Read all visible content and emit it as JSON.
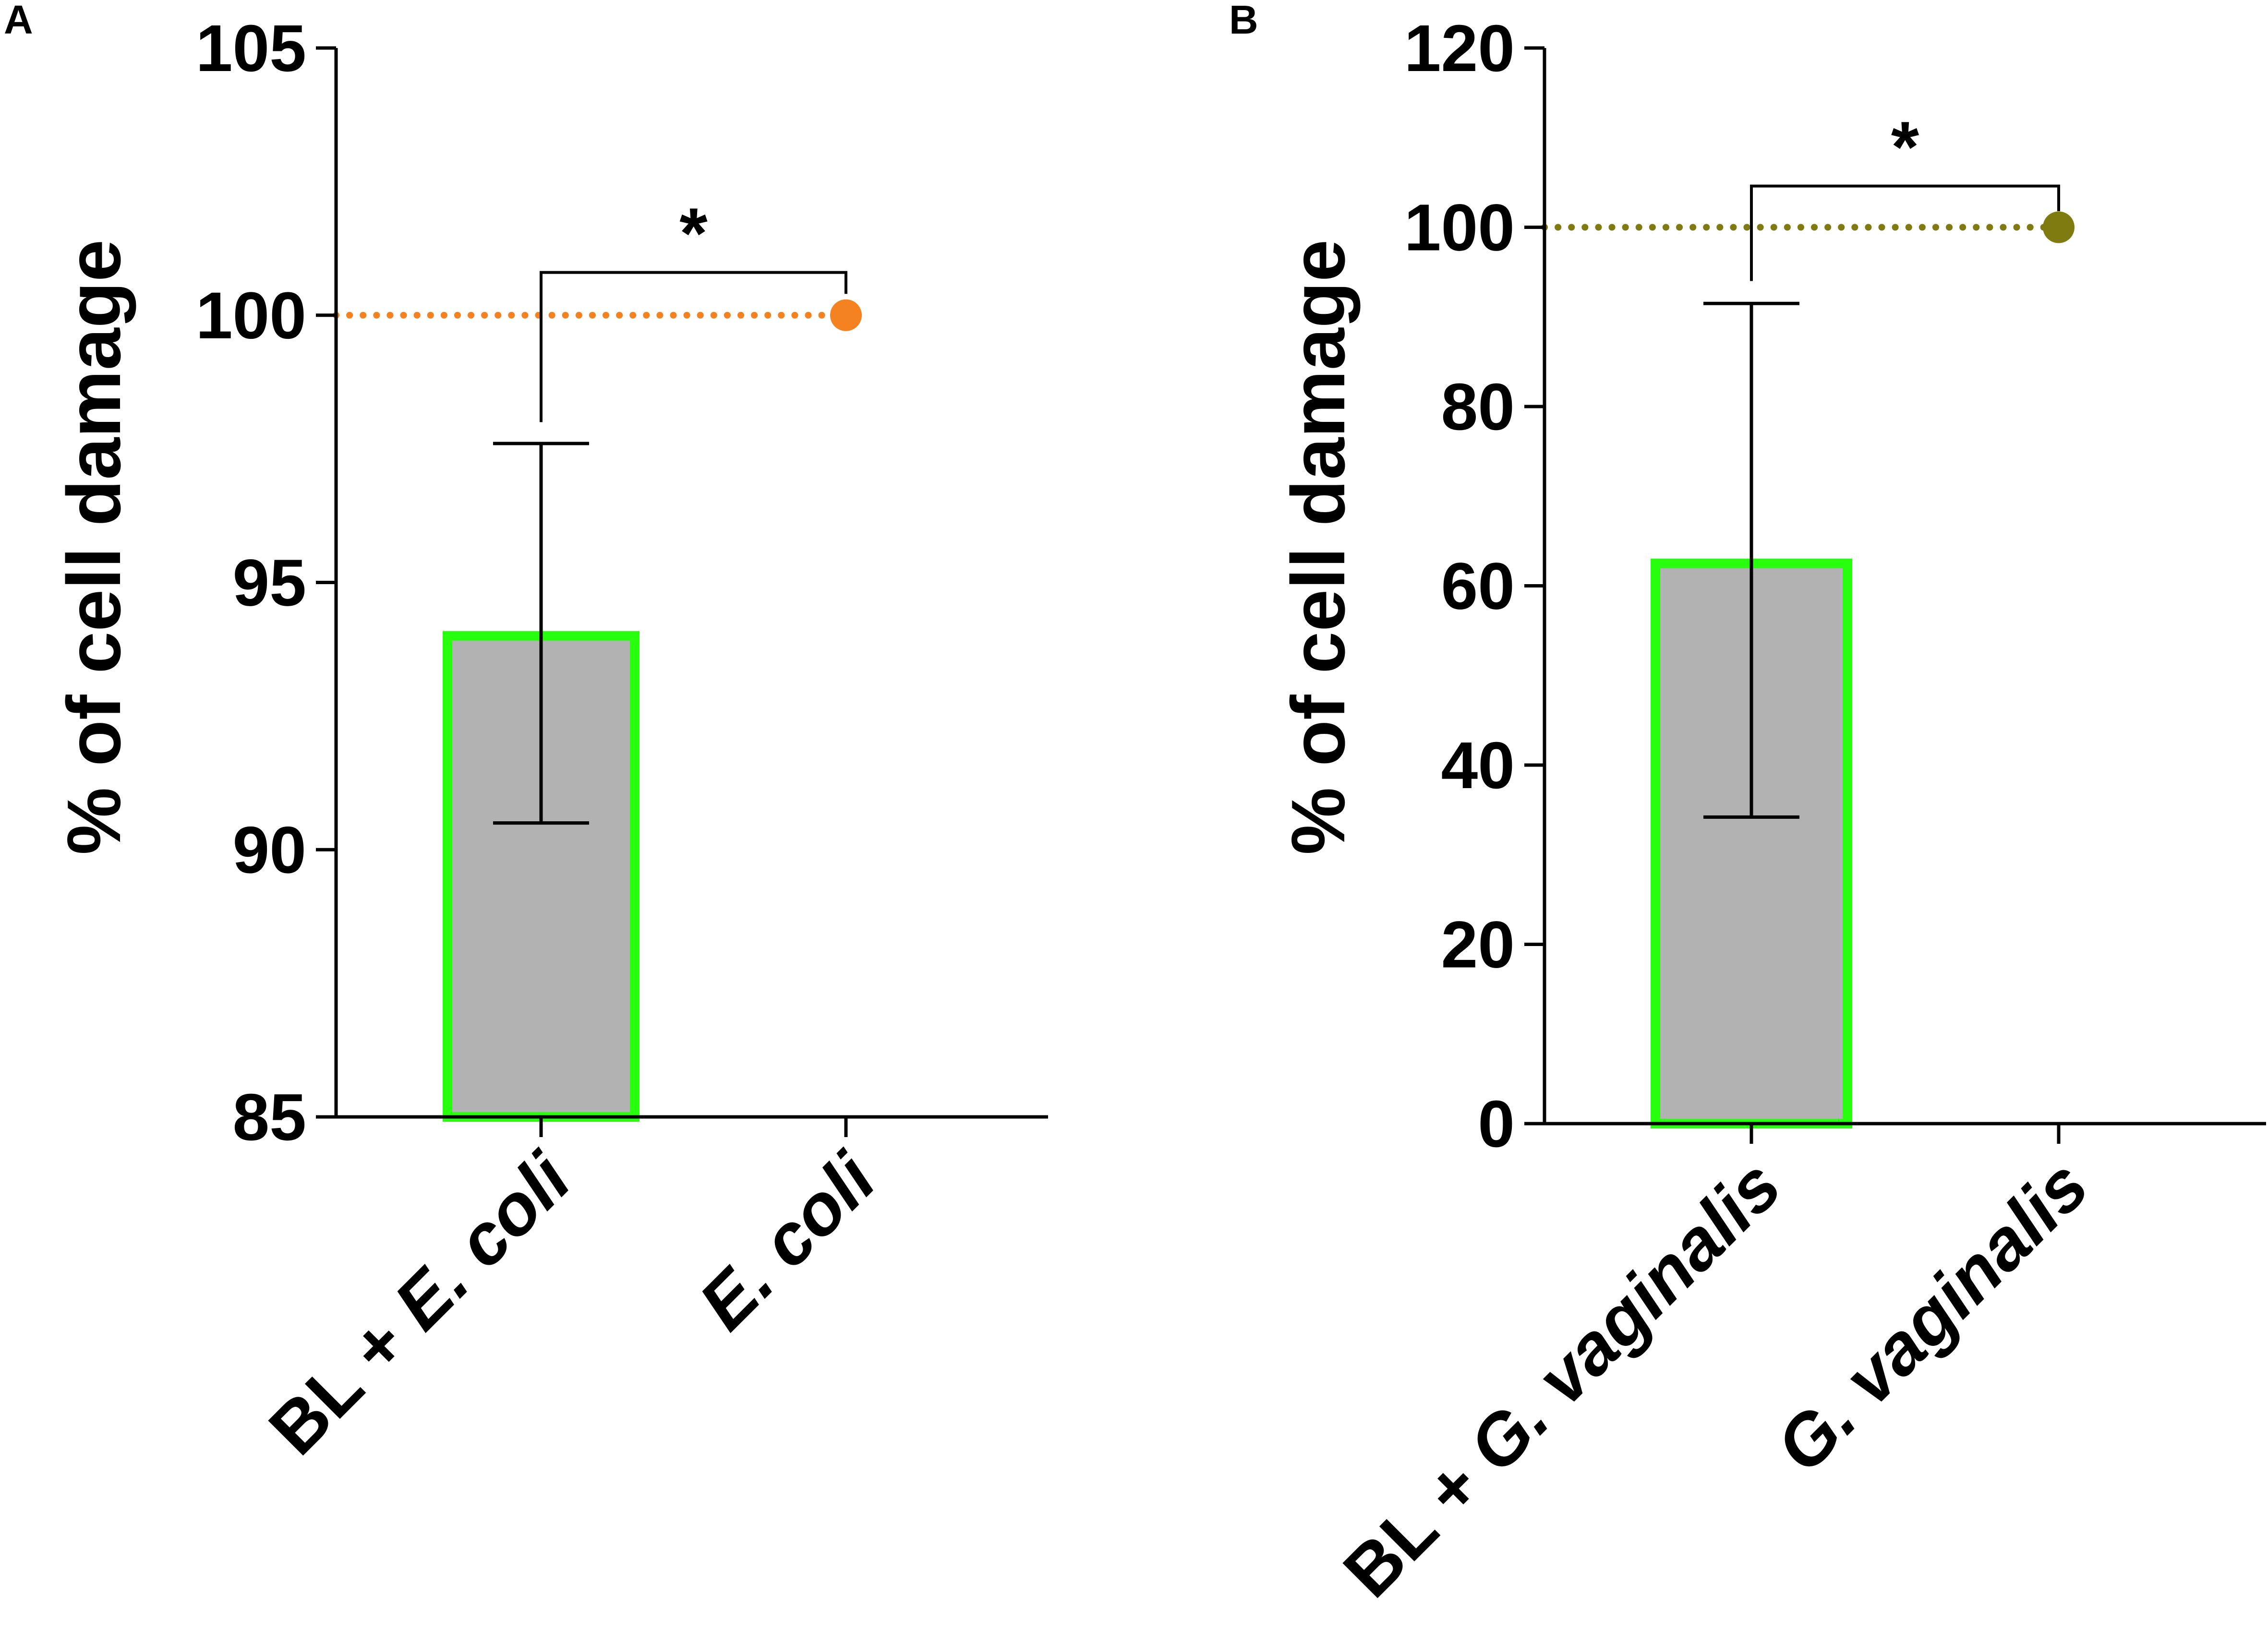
{
  "chart_data": [
    {
      "panel_label": "A",
      "type": "bar",
      "ylabel": "% of cell damage",
      "ylim": [
        85,
        105
      ],
      "yticks": [
        85,
        90,
        95,
        100,
        105
      ],
      "categories": [
        {
          "prefix": "BL + ",
          "italic": "E. coli"
        },
        {
          "prefix": "",
          "italic": "E. coli"
        }
      ],
      "bar": {
        "category_index": 0,
        "value": 94,
        "error_low": 90.5,
        "error_high": 97.6
      },
      "reference": {
        "category_index": 1,
        "value": 100,
        "line": "dotted",
        "color": "#f58220"
      },
      "significance": {
        "from": 0,
        "to": 1,
        "label": "*",
        "bracket_value": 100.8,
        "left_leg_to": 98.0,
        "right_leg_to": 100.4
      },
      "colors": {
        "bar_fill": "#b2b2b2",
        "bar_border": "#27ff0f"
      }
    },
    {
      "panel_label": "B",
      "type": "bar",
      "ylabel": "% of cell damage",
      "ylim": [
        0,
        120
      ],
      "yticks": [
        0,
        20,
        40,
        60,
        80,
        100,
        120
      ],
      "categories": [
        {
          "prefix": "BL + ",
          "italic": "G. vaginalis"
        },
        {
          "prefix": "",
          "italic": "G. vaginalis"
        }
      ],
      "bar": {
        "category_index": 0,
        "value": 62.5,
        "error_low": 34.2,
        "error_high": 91.5
      },
      "reference": {
        "category_index": 1,
        "value": 100,
        "line": "dotted",
        "color": "#7f7b10"
      },
      "significance": {
        "from": 0,
        "to": 1,
        "label": "*",
        "bracket_value": 104.6,
        "left_leg_to": 94.0,
        "right_leg_to": 101.8
      },
      "colors": {
        "bar_fill": "#b2b2b2",
        "bar_border": "#27ff0f"
      }
    }
  ]
}
